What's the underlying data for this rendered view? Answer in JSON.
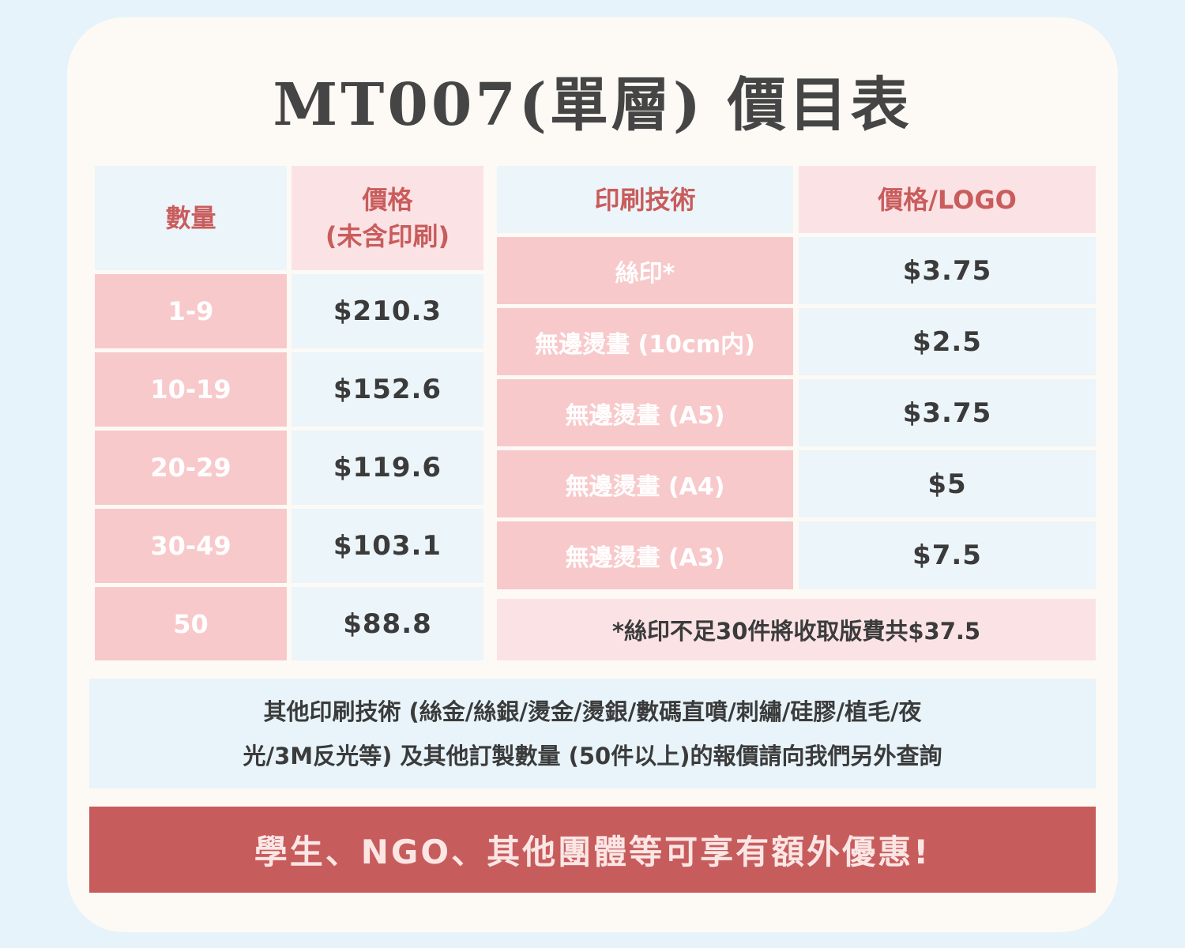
{
  "title": "MT007(單層) 價目表",
  "qty_table": {
    "qty_header": "數量",
    "price_header_line1": "價格",
    "price_header_line2": "(未含印刷)",
    "rows": [
      {
        "qty": "1-9",
        "price": "$210.3"
      },
      {
        "qty": "10-19",
        "price": "$152.6"
      },
      {
        "qty": "20-29",
        "price": "$119.6"
      },
      {
        "qty": "30-49",
        "price": "$103.1"
      },
      {
        "qty": "50",
        "price": "$88.8"
      }
    ]
  },
  "print_table": {
    "tech_header": "印刷技術",
    "price_header": "價格/LOGO",
    "rows": [
      {
        "tech": "絲印*",
        "price": "$3.75"
      },
      {
        "tech": "無邊燙畫 (10cm内)",
        "price": "$2.5"
      },
      {
        "tech": "無邊燙畫 (A5)",
        "price": "$3.75"
      },
      {
        "tech": "無邊燙畫 (A4)",
        "price": "$5"
      },
      {
        "tech": "無邊燙畫 (A3)",
        "price": "$7.5"
      }
    ],
    "footnote": "*絲印不足30件將收取版費共$37.5"
  },
  "info_line1": "其他印刷技術 (絲金/絲銀/燙金/燙銀/數碼直噴/刺繡/硅膠/植毛/夜",
  "info_line2": "光/3M反光等) 及其他訂製數量 (50件以上)的報價請向我們另外查詢",
  "banner": "學生、NGO、其他團體等可享有額外優惠!"
}
